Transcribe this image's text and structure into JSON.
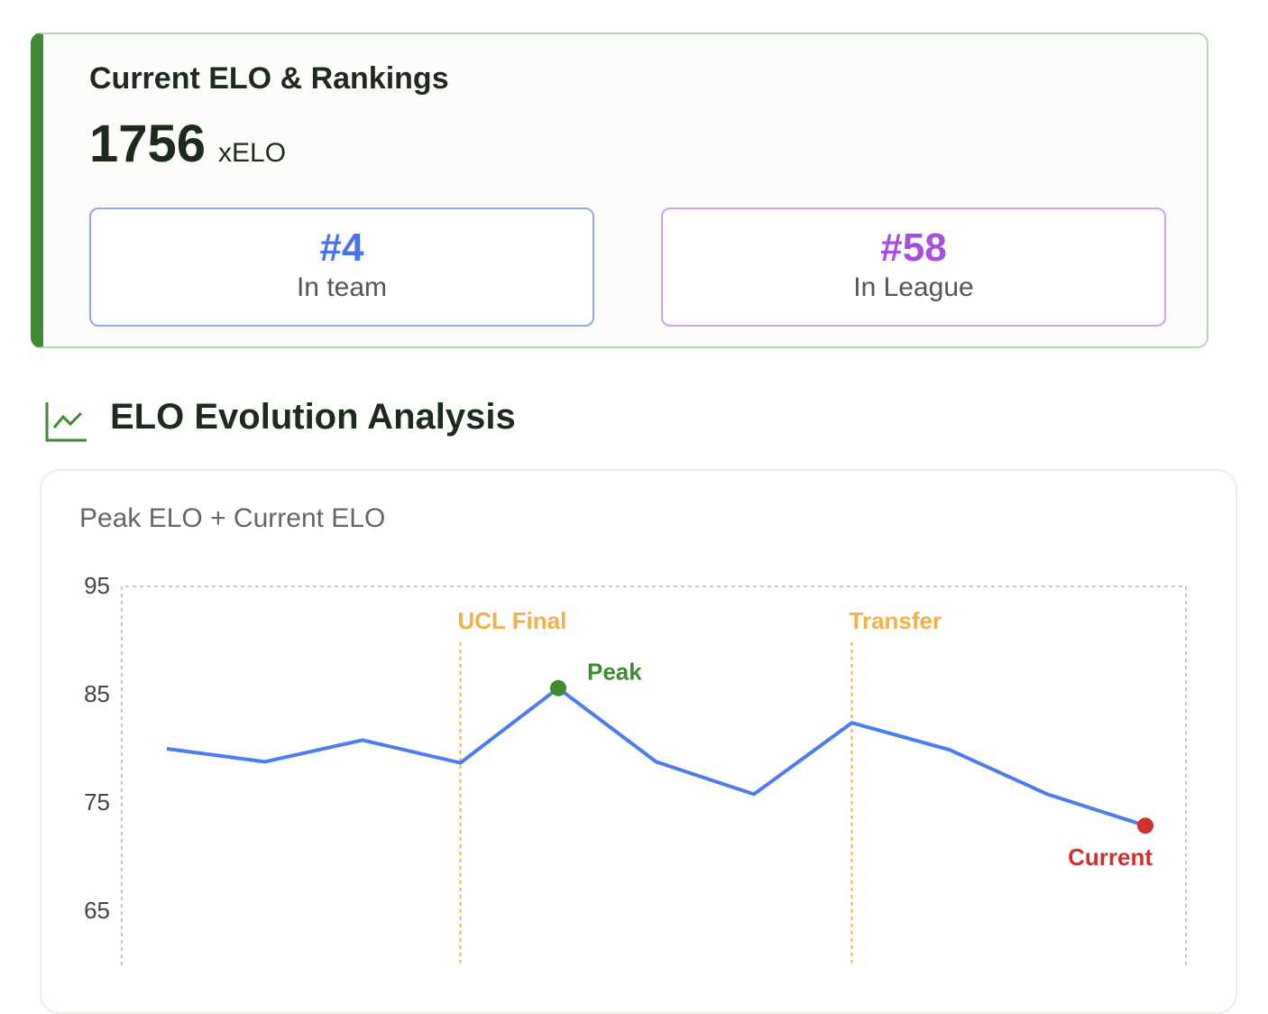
{
  "card": {
    "title": "Current ELO & Rankings",
    "value": "1756",
    "unit": "xELO",
    "ranks": [
      {
        "rank": "#4",
        "label": "In team",
        "color": "#4a73e8",
        "border": "#8fa8f0"
      },
      {
        "rank": "#58",
        "label": "In League",
        "color": "#a64ee0",
        "border": "#cfa3ee"
      }
    ]
  },
  "section_title": "ELO Evolution Analysis",
  "chart_data": {
    "type": "line",
    "title": "Peak ELO + Current ELO",
    "categories": [
      null,
      null,
      null,
      null,
      null,
      null,
      null,
      null,
      null,
      null,
      null
    ],
    "series": [
      {
        "name": null,
        "color": "#4d7cf0",
        "values": [
          80,
          78.8,
          80.8,
          78.7,
          85.6,
          78.8,
          75.8,
          82.4,
          79.9,
          75.8,
          72.9
        ]
      }
    ],
    "ylim": [
      60,
      95
    ],
    "yticks": [
      95,
      85,
      75,
      65
    ],
    "grid": false,
    "annotations": [
      {
        "index": 3,
        "label": "UCL Final",
        "color": "#f0b04a"
      },
      {
        "index": 7,
        "label": "Transfer",
        "color": "#f0b04a"
      }
    ],
    "point_labels": [
      {
        "index": 4,
        "label": "Peak",
        "color": "#3d8b2f"
      },
      {
        "index": 10,
        "label": "Current",
        "color": "#d32f2f"
      }
    ]
  }
}
